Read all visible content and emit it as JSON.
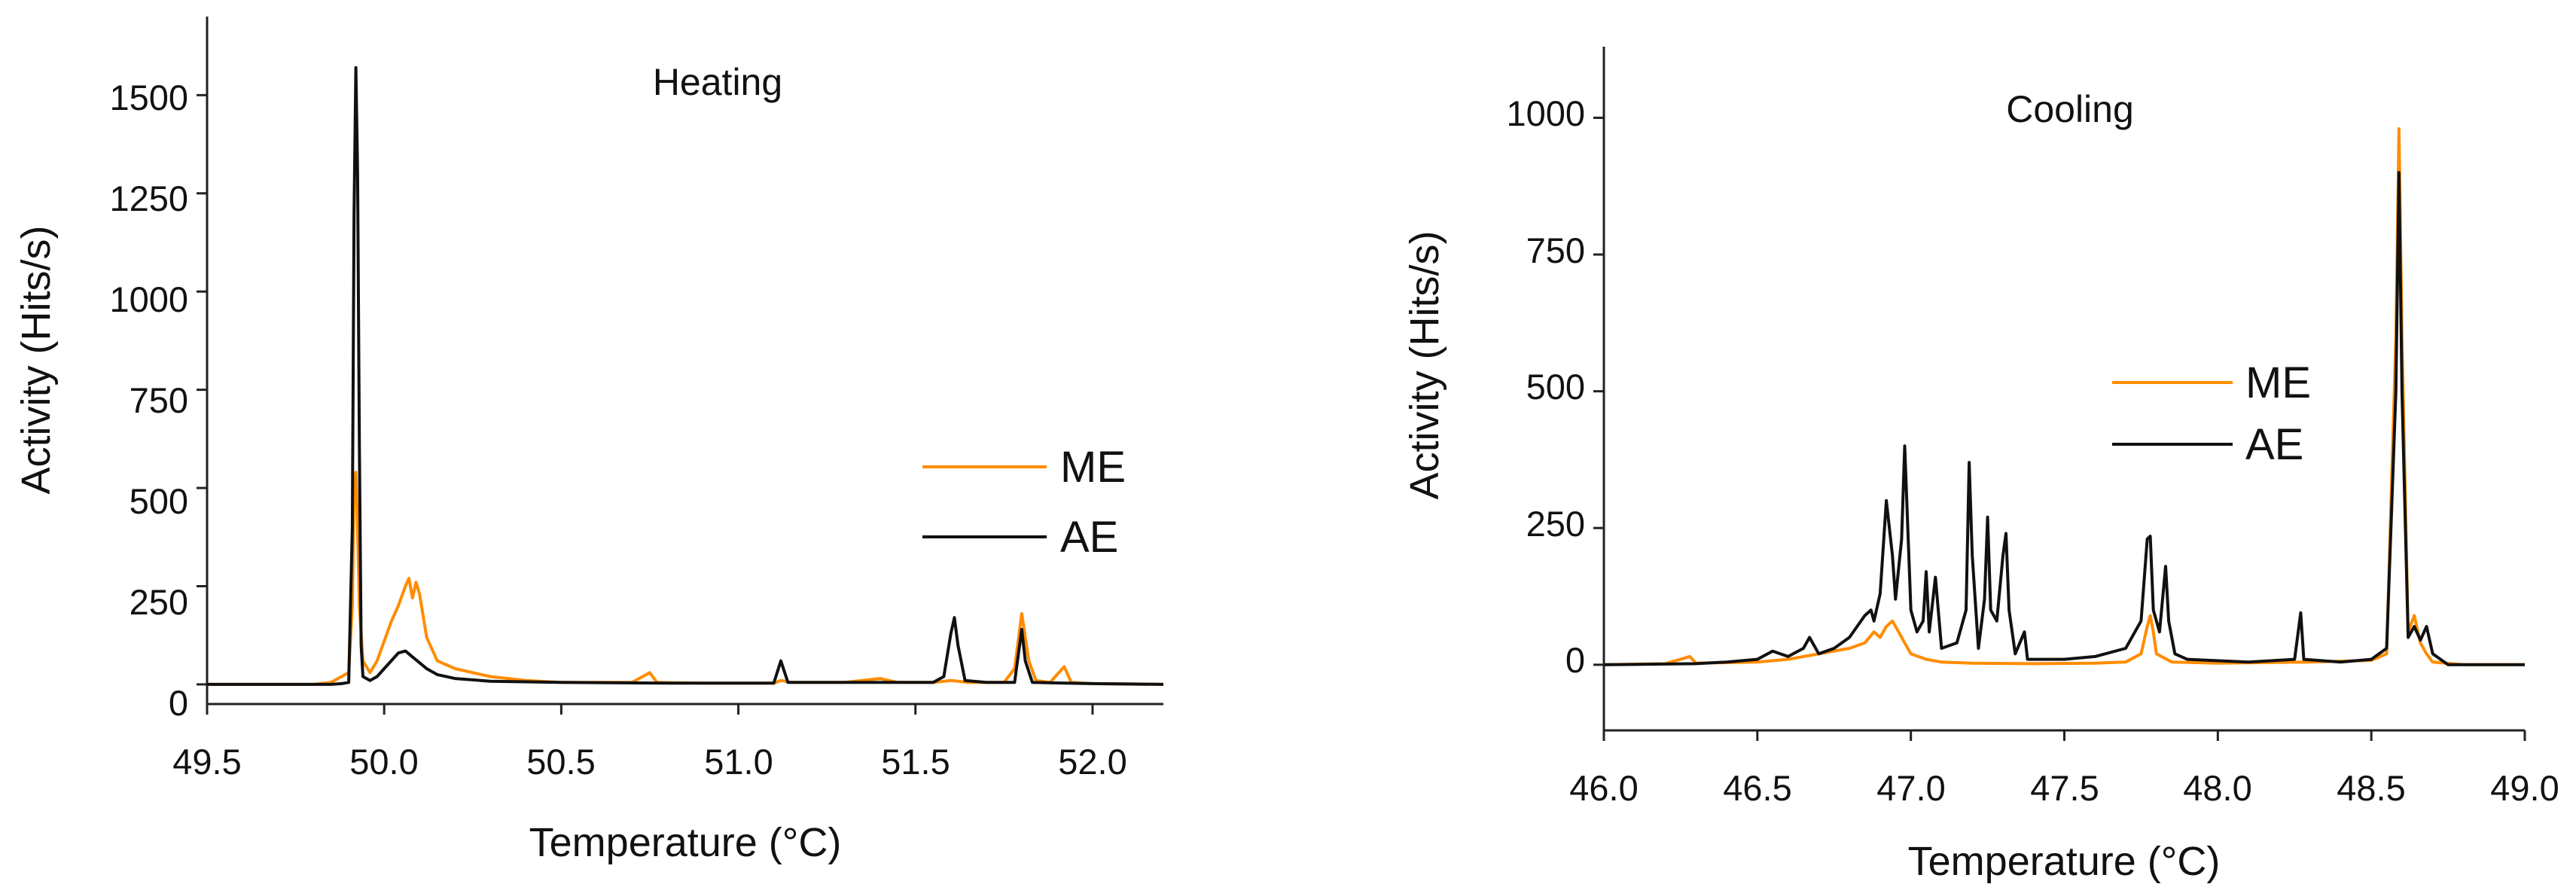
{
  "chart_data": [
    {
      "type": "line",
      "title": "Heating",
      "xlabel": "Temperature (°C)",
      "ylabel": "Activity (Hits/s)",
      "xlim": [
        49.5,
        52.2
      ],
      "ylim": [
        -50,
        1700
      ],
      "xticks": [
        "49.5",
        "50.0",
        "50.5",
        "51.0",
        "51.5",
        "52.0"
      ],
      "yticks": [
        "0",
        "250",
        "500",
        "750",
        "1000",
        "1250",
        "1500"
      ],
      "legend_position": "center-right",
      "series": [
        {
          "name": "ME",
          "color": "#ff8c00",
          "points": [
            [
              49.5,
              0
            ],
            [
              49.8,
              0
            ],
            [
              49.85,
              5
            ],
            [
              49.88,
              20
            ],
            [
              49.9,
              30
            ],
            [
              49.91,
              200
            ],
            [
              49.915,
              480
            ],
            [
              49.92,
              540
            ],
            [
              49.925,
              400
            ],
            [
              49.93,
              200
            ],
            [
              49.94,
              60
            ],
            [
              49.96,
              30
            ],
            [
              49.98,
              60
            ],
            [
              50.0,
              110
            ],
            [
              50.02,
              160
            ],
            [
              50.04,
              200
            ],
            [
              50.06,
              250
            ],
            [
              50.07,
              270
            ],
            [
              50.08,
              220
            ],
            [
              50.09,
              260
            ],
            [
              50.1,
              230
            ],
            [
              50.12,
              120
            ],
            [
              50.15,
              60
            ],
            [
              50.2,
              40
            ],
            [
              50.25,
              30
            ],
            [
              50.3,
              20
            ],
            [
              50.35,
              15
            ],
            [
              50.4,
              10
            ],
            [
              50.5,
              5
            ],
            [
              50.6,
              5
            ],
            [
              50.7,
              5
            ],
            [
              50.75,
              30
            ],
            [
              50.77,
              5
            ],
            [
              50.9,
              3
            ],
            [
              51.0,
              3
            ],
            [
              51.1,
              3
            ],
            [
              51.12,
              10
            ],
            [
              51.15,
              5
            ],
            [
              51.3,
              5
            ],
            [
              51.4,
              15
            ],
            [
              51.45,
              5
            ],
            [
              51.55,
              5
            ],
            [
              51.6,
              10
            ],
            [
              51.65,
              5
            ],
            [
              51.75,
              5
            ],
            [
              51.78,
              40
            ],
            [
              51.8,
              180
            ],
            [
              51.82,
              60
            ],
            [
              51.84,
              10
            ],
            [
              51.88,
              5
            ],
            [
              51.92,
              45
            ],
            [
              51.94,
              5
            ],
            [
              52.0,
              2
            ],
            [
              52.2,
              0
            ]
          ]
        },
        {
          "name": "AE",
          "color": "#111111",
          "points": [
            [
              49.5,
              0
            ],
            [
              49.85,
              0
            ],
            [
              49.88,
              2
            ],
            [
              49.9,
              5
            ],
            [
              49.91,
              400
            ],
            [
              49.915,
              1200
            ],
            [
              49.92,
              1570
            ],
            [
              49.925,
              1300
            ],
            [
              49.93,
              600
            ],
            [
              49.935,
              100
            ],
            [
              49.94,
              20
            ],
            [
              49.96,
              10
            ],
            [
              49.98,
              20
            ],
            [
              50.0,
              40
            ],
            [
              50.02,
              60
            ],
            [
              50.04,
              80
            ],
            [
              50.06,
              85
            ],
            [
              50.08,
              70
            ],
            [
              50.1,
              55
            ],
            [
              50.12,
              40
            ],
            [
              50.15,
              25
            ],
            [
              50.2,
              15
            ],
            [
              50.3,
              8
            ],
            [
              50.5,
              5
            ],
            [
              50.8,
              3
            ],
            [
              51.1,
              3
            ],
            [
              51.12,
              60
            ],
            [
              51.14,
              5
            ],
            [
              51.3,
              5
            ],
            [
              51.55,
              5
            ],
            [
              51.58,
              20
            ],
            [
              51.6,
              130
            ],
            [
              51.61,
              170
            ],
            [
              51.62,
              100
            ],
            [
              51.64,
              10
            ],
            [
              51.7,
              5
            ],
            [
              51.78,
              5
            ],
            [
              51.8,
              140
            ],
            [
              51.81,
              60
            ],
            [
              51.83,
              5
            ],
            [
              52.0,
              2
            ],
            [
              52.2,
              0
            ]
          ]
        }
      ]
    },
    {
      "type": "line",
      "title": "Cooling",
      "xlabel": "Temperature (°C)",
      "ylabel": "Activity (Hits/s)",
      "xlim": [
        46.0,
        49.0
      ],
      "ylim": [
        -120,
        1130
      ],
      "xticks": [
        "46.0",
        "46.5",
        "47.0",
        "47.5",
        "48.0",
        "48.5",
        "49.0"
      ],
      "yticks": [
        "0",
        "250",
        "500",
        "750",
        "1000"
      ],
      "legend_position": "center-right",
      "series": [
        {
          "name": "ME",
          "color": "#ff8c00",
          "points": [
            [
              46.0,
              0
            ],
            [
              46.2,
              2
            ],
            [
              46.28,
              15
            ],
            [
              46.3,
              3
            ],
            [
              46.5,
              5
            ],
            [
              46.6,
              10
            ],
            [
              46.7,
              20
            ],
            [
              46.8,
              30
            ],
            [
              46.85,
              40
            ],
            [
              46.88,
              60
            ],
            [
              46.9,
              50
            ],
            [
              46.92,
              70
            ],
            [
              46.94,
              80
            ],
            [
              46.96,
              60
            ],
            [
              46.98,
              40
            ],
            [
              47.0,
              20
            ],
            [
              47.05,
              10
            ],
            [
              47.1,
              5
            ],
            [
              47.2,
              3
            ],
            [
              47.4,
              2
            ],
            [
              47.6,
              3
            ],
            [
              47.7,
              5
            ],
            [
              47.75,
              20
            ],
            [
              47.77,
              70
            ],
            [
              47.78,
              90
            ],
            [
              47.79,
              60
            ],
            [
              47.8,
              20
            ],
            [
              47.85,
              5
            ],
            [
              48.0,
              3
            ],
            [
              48.3,
              5
            ],
            [
              48.5,
              8
            ],
            [
              48.55,
              20
            ],
            [
              48.58,
              600
            ],
            [
              48.59,
              980
            ],
            [
              48.6,
              600
            ],
            [
              48.62,
              60
            ],
            [
              48.64,
              90
            ],
            [
              48.66,
              40
            ],
            [
              48.68,
              20
            ],
            [
              48.7,
              5
            ],
            [
              48.8,
              0
            ],
            [
              49.0,
              0
            ]
          ]
        },
        {
          "name": "AE",
          "color": "#111111",
          "points": [
            [
              46.0,
              0
            ],
            [
              46.3,
              2
            ],
            [
              46.4,
              5
            ],
            [
              46.5,
              10
            ],
            [
              46.55,
              25
            ],
            [
              46.6,
              15
            ],
            [
              46.65,
              30
            ],
            [
              46.67,
              50
            ],
            [
              46.7,
              20
            ],
            [
              46.75,
              30
            ],
            [
              46.8,
              50
            ],
            [
              46.85,
              90
            ],
            [
              46.87,
              100
            ],
            [
              46.88,
              80
            ],
            [
              46.9,
              130
            ],
            [
              46.92,
              300
            ],
            [
              46.94,
              200
            ],
            [
              46.95,
              120
            ],
            [
              46.97,
              230
            ],
            [
              46.98,
              400
            ],
            [
              46.99,
              250
            ],
            [
              47.0,
              100
            ],
            [
              47.02,
              60
            ],
            [
              47.04,
              80
            ],
            [
              47.05,
              170
            ],
            [
              47.06,
              60
            ],
            [
              47.08,
              160
            ],
            [
              47.1,
              30
            ],
            [
              47.15,
              40
            ],
            [
              47.18,
              100
            ],
            [
              47.19,
              370
            ],
            [
              47.2,
              200
            ],
            [
              47.22,
              30
            ],
            [
              47.24,
              120
            ],
            [
              47.25,
              270
            ],
            [
              47.26,
              100
            ],
            [
              47.28,
              80
            ],
            [
              47.3,
              200
            ],
            [
              47.31,
              240
            ],
            [
              47.32,
              100
            ],
            [
              47.34,
              20
            ],
            [
              47.37,
              60
            ],
            [
              47.38,
              10
            ],
            [
              47.5,
              10
            ],
            [
              47.6,
              15
            ],
            [
              47.7,
              30
            ],
            [
              47.75,
              80
            ],
            [
              47.77,
              230
            ],
            [
              47.78,
              235
            ],
            [
              47.79,
              100
            ],
            [
              47.81,
              60
            ],
            [
              47.83,
              180
            ],
            [
              47.84,
              80
            ],
            [
              47.86,
              20
            ],
            [
              47.9,
              10
            ],
            [
              48.1,
              5
            ],
            [
              48.25,
              10
            ],
            [
              48.27,
              95
            ],
            [
              48.28,
              10
            ],
            [
              48.4,
              5
            ],
            [
              48.5,
              10
            ],
            [
              48.55,
              30
            ],
            [
              48.58,
              500
            ],
            [
              48.59,
              900
            ],
            [
              48.6,
              500
            ],
            [
              48.62,
              50
            ],
            [
              48.64,
              70
            ],
            [
              48.66,
              45
            ],
            [
              48.68,
              70
            ],
            [
              48.7,
              20
            ],
            [
              48.75,
              0
            ],
            [
              49.0,
              0
            ]
          ]
        }
      ]
    }
  ]
}
